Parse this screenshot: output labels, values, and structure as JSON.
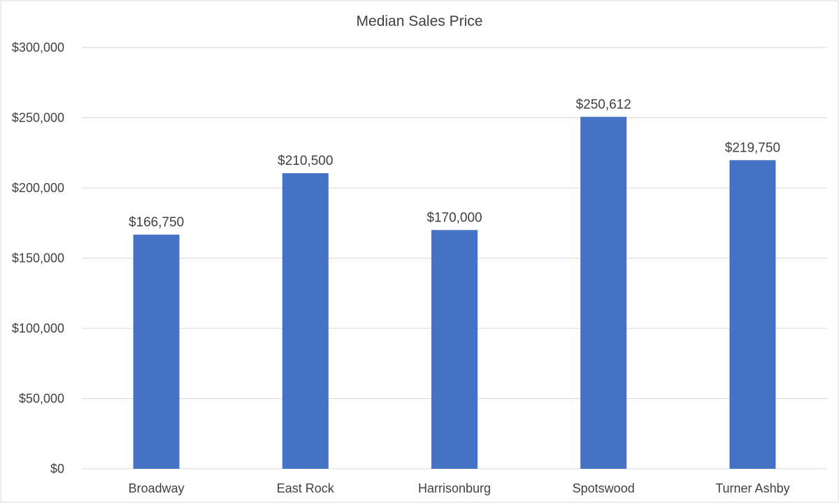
{
  "chart_data": {
    "type": "bar",
    "title": "Median Sales Price",
    "xlabel": "",
    "ylabel": "",
    "categories": [
      "Broadway",
      "East Rock",
      "Harrisonburg",
      "Spotswood",
      "Turner Ashby"
    ],
    "values": [
      166750,
      210500,
      170000,
      250612,
      219750
    ],
    "data_labels": [
      "$166,750",
      "$210,500",
      "$170,000",
      "$250,612",
      "$219,750"
    ],
    "ylim": [
      0,
      300000
    ],
    "y_ticks": [
      0,
      50000,
      100000,
      150000,
      200000,
      250000,
      300000
    ],
    "y_tick_labels": [
      "$0",
      "$50,000",
      "$100,000",
      "$150,000",
      "$200,000",
      "$250,000",
      "$300,000"
    ],
    "grid": true,
    "legend": "none",
    "bar_color": "#4472C4"
  }
}
